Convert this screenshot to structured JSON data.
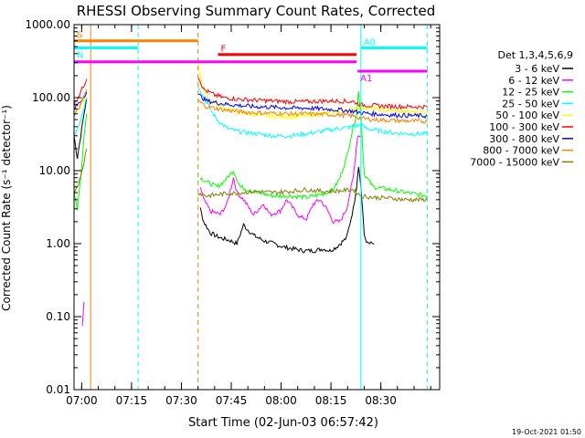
{
  "chart_data": {
    "type": "line",
    "title": "RHESSI Observing Summary Count Rates, Corrected",
    "xlabel": "Start Time (02-Jun-03 06:57:42)",
    "ylabel": "Corrected Count Rate (s⁻¹ detector⁻¹)",
    "footer": "19-Oct-2021 01:50",
    "yscale": "log",
    "ylim": [
      0.01,
      1000
    ],
    "xlim_min": [
      0,
      110
    ],
    "x_units": "minutes after 06:57:42",
    "y_ticks": [
      {
        "v": 0.01,
        "label": "0.01"
      },
      {
        "v": 0.1,
        "label": "0.10"
      },
      {
        "v": 1,
        "label": "1.00"
      },
      {
        "v": 10,
        "label": "10.00"
      },
      {
        "v": 100,
        "label": "100.00"
      },
      {
        "v": 1000,
        "label": "1000.00"
      }
    ],
    "x_ticks": [
      {
        "v": 2.3,
        "label": "07:00"
      },
      {
        "v": 17.3,
        "label": "07:15"
      },
      {
        "v": 32.3,
        "label": "07:30"
      },
      {
        "v": 47.3,
        "label": "07:45"
      },
      {
        "v": 62.3,
        "label": "08:00"
      },
      {
        "v": 77.3,
        "label": "08:15"
      },
      {
        "v": 92.3,
        "label": "08:30"
      }
    ],
    "legend": {
      "title": "Det 1,3,4,5,6,9",
      "position": "right",
      "entries": [
        {
          "label": "3 - 6 keV",
          "color": "#000000"
        },
        {
          "label": "6 - 12 keV",
          "color": "#ff00ff"
        },
        {
          "label": "12 - 25 keV",
          "color": "#00ff00"
        },
        {
          "label": "25 - 50 keV",
          "color": "#00ffff"
        },
        {
          "label": "50 - 100 keV",
          "color": "#ffff00"
        },
        {
          "label": "100 - 300 keV",
          "color": "#ff0000"
        },
        {
          "label": "300 - 800 keV",
          "color": "#0000ff"
        },
        {
          "label": "800 - 7000 keV",
          "color": "#ff8000"
        },
        {
          "label": "7000 - 15000 keV",
          "color": "#808000"
        }
      ]
    },
    "flag_bars": [
      {
        "label": "S",
        "color": "#ff8000",
        "x0": 0,
        "x1": 37.3,
        "y": 600
      },
      {
        "label": "N",
        "color": "#00ffff",
        "x0": 0,
        "x1": 19.3,
        "y": 480
      },
      {
        "label": "",
        "color": "#ff00ff",
        "x0": 0,
        "x1": 85,
        "y": 310
      },
      {
        "label": "F",
        "color": "#ff0000",
        "x0": 43.3,
        "x1": 85,
        "y": 390
      },
      {
        "label": "A0",
        "color": "#00ffff",
        "x0": 86.3,
        "x1": 106.3,
        "y": 480
      },
      {
        "label": "A1",
        "color": "#ff00ff",
        "x0": 85.3,
        "x1": 106.3,
        "y": 230
      }
    ],
    "vlines": [
      {
        "x": 0,
        "color": "#00ffff",
        "style": "dashed"
      },
      {
        "x": 5,
        "color": "#ff8000",
        "style": "solid"
      },
      {
        "x": 19.3,
        "color": "#00ffff",
        "style": "dashed"
      },
      {
        "x": 37.3,
        "color": "#ff8000",
        "style": "dashed"
      },
      {
        "x": 86.3,
        "color": "#00ffff",
        "style": "solid"
      },
      {
        "x": 106.3,
        "color": "#00ffff",
        "style": "dashed"
      }
    ],
    "series": [
      {
        "name": "3 - 6 keV",
        "color": "#000000",
        "segments": [
          [
            [
              0,
              30
            ],
            [
              1,
              15
            ],
            [
              2,
              30
            ],
            [
              3,
              60
            ],
            [
              3.8,
              100
            ]
          ],
          [
            [
              38,
              3
            ],
            [
              39,
              2
            ],
            [
              41,
              1.4
            ],
            [
              44,
              1.2
            ],
            [
              47,
              1.1
            ],
            [
              49,
              1.0
            ],
            [
              51,
              1.8
            ],
            [
              52,
              1.6
            ],
            [
              54,
              1.3
            ],
            [
              57,
              1.1
            ],
            [
              60,
              1.0
            ],
            [
              63,
              0.9
            ],
            [
              66,
              0.85
            ],
            [
              69,
              0.8
            ],
            [
              72,
              0.8
            ],
            [
              75,
              0.85
            ],
            [
              77,
              0.8
            ],
            [
              79,
              0.9
            ],
            [
              82,
              1.2
            ],
            [
              84,
              3
            ],
            [
              85,
              6
            ],
            [
              85.6,
              12
            ],
            [
              86.3,
              6
            ],
            [
              86.8,
              3
            ],
            [
              87.3,
              1.3
            ],
            [
              88.3,
              1.0
            ],
            [
              90.3,
              1.0
            ]
          ]
        ]
      },
      {
        "name": "6 - 12 keV",
        "color": "#ff00ff",
        "segments": [
          [
            [
              2.5,
              0.07
            ],
            [
              3,
              0.16
            ]
          ],
          [
            [
              38,
              6
            ],
            [
              39,
              4
            ],
            [
              41,
              2.8
            ],
            [
              44,
              2.5
            ],
            [
              46,
              3.5
            ],
            [
              48,
              8
            ],
            [
              49,
              5
            ],
            [
              51,
              4
            ],
            [
              54,
              2.5
            ],
            [
              57,
              3.5
            ],
            [
              59,
              2.5
            ],
            [
              62,
              2.8
            ],
            [
              64,
              4
            ],
            [
              66,
              3
            ],
            [
              68,
              2.3
            ],
            [
              70,
              2.2
            ],
            [
              72,
              3.5
            ],
            [
              74,
              4
            ],
            [
              76,
              3
            ],
            [
              78,
              2
            ],
            [
              80,
              2
            ],
            [
              82,
              3
            ],
            [
              84,
              8
            ],
            [
              85.3,
              30
            ],
            [
              86.3,
              30
            ]
          ]
        ]
      },
      {
        "name": "12 - 25 keV",
        "color": "#00ff00",
        "segments": [
          [
            [
              0,
              5
            ],
            [
              1,
              3
            ],
            [
              2,
              8
            ],
            [
              3,
              30
            ],
            [
              3.8,
              60
            ]
          ],
          [
            [
              38,
              8
            ],
            [
              40,
              7
            ],
            [
              43,
              6
            ],
            [
              45,
              7
            ],
            [
              48,
              10
            ],
            [
              50,
              6
            ],
            [
              55,
              5
            ],
            [
              60,
              4.5
            ],
            [
              65,
              4.5
            ],
            [
              70,
              4.3
            ],
            [
              75,
              4.8
            ],
            [
              78,
              5.5
            ],
            [
              80,
              8
            ],
            [
              82,
              15
            ],
            [
              84,
              40
            ],
            [
              85,
              60
            ],
            [
              85.6,
              120
            ],
            [
              86.3,
              60
            ],
            [
              87.3,
              9
            ],
            [
              90,
              6
            ],
            [
              95,
              5.5
            ],
            [
              100,
              5
            ],
            [
              106.3,
              4.5
            ]
          ]
        ]
      },
      {
        "name": "25 - 50 keV",
        "color": "#00ffff",
        "segments": [
          [
            [
              0,
              30
            ],
            [
              2,
              50
            ],
            [
              3.8,
              100
            ]
          ],
          [
            [
              37.3,
              150
            ],
            [
              39,
              100
            ],
            [
              41,
              70
            ],
            [
              43,
              50
            ],
            [
              46,
              38
            ],
            [
              50,
              34
            ],
            [
              55,
              32
            ],
            [
              60,
              30
            ],
            [
              65,
              30
            ],
            [
              70,
              32
            ],
            [
              75,
              35
            ],
            [
              80,
              38
            ],
            [
              84,
              40
            ],
            [
              86.3,
              42
            ],
            [
              88,
              38
            ],
            [
              92,
              35
            ],
            [
              96,
              33
            ],
            [
              100,
              32
            ],
            [
              106.3,
              32
            ]
          ]
        ]
      },
      {
        "name": "50 - 100 keV",
        "color": "#ffff00",
        "segments": [
          [
            [
              0,
              60
            ],
            [
              2,
              80
            ],
            [
              3.8,
              100
            ]
          ],
          [
            [
              37.3,
              300
            ],
            [
              38.5,
              150
            ],
            [
              40,
              100
            ],
            [
              43,
              80
            ],
            [
              46,
              70
            ],
            [
              50,
              62
            ],
            [
              55,
              58
            ],
            [
              60,
              55
            ],
            [
              65,
              55
            ],
            [
              70,
              56
            ],
            [
              75,
              60
            ],
            [
              80,
              66
            ],
            [
              84,
              70
            ],
            [
              86.3,
              75
            ],
            [
              90,
              70
            ],
            [
              95,
              66
            ],
            [
              100,
              64
            ],
            [
              106.3,
              63
            ]
          ]
        ]
      },
      {
        "name": "100 - 300 keV",
        "color": "#ff0000",
        "segments": [
          [
            [
              0,
              80
            ],
            [
              2,
              120
            ],
            [
              3.8,
              180
            ]
          ],
          [
            [
              37.3,
              200
            ],
            [
              39,
              130
            ],
            [
              42,
              110
            ],
            [
              45,
              100
            ],
            [
              50,
              95
            ],
            [
              55,
              92
            ],
            [
              60,
              90
            ],
            [
              65,
              88
            ],
            [
              70,
              88
            ],
            [
              75,
              90
            ],
            [
              80,
              90
            ],
            [
              84,
              88
            ],
            [
              86.3,
              80
            ],
            [
              90,
              78
            ],
            [
              95,
              76
            ],
            [
              100,
              75
            ],
            [
              106.3,
              75
            ]
          ]
        ]
      },
      {
        "name": "300 - 800 keV",
        "color": "#0000ff",
        "segments": [
          [
            [
              0,
              70
            ],
            [
              2,
              90
            ],
            [
              3.8,
              120
            ]
          ],
          [
            [
              37.3,
              110
            ],
            [
              40,
              90
            ],
            [
              45,
              82
            ],
            [
              50,
              78
            ],
            [
              55,
              75
            ],
            [
              60,
              74
            ],
            [
              65,
              72
            ],
            [
              70,
              72
            ],
            [
              75,
              70
            ],
            [
              80,
              68
            ],
            [
              84,
              65
            ],
            [
              86.3,
              62
            ],
            [
              90,
              60
            ],
            [
              95,
              58
            ],
            [
              100,
              57
            ],
            [
              106.3,
              56
            ]
          ]
        ]
      },
      {
        "name": "800 - 7000 keV",
        "color": "#ff8000",
        "segments": [
          [
            [
              0,
              55
            ],
            [
              2,
              80
            ],
            [
              3.8,
              130
            ]
          ],
          [
            [
              37.3,
              90
            ],
            [
              40,
              75
            ],
            [
              45,
              68
            ],
            [
              50,
              64
            ],
            [
              55,
              62
            ],
            [
              60,
              61
            ],
            [
              65,
              60
            ],
            [
              70,
              60
            ],
            [
              75,
              59
            ],
            [
              80,
              58
            ],
            [
              84,
              56
            ],
            [
              86.3,
              52
            ],
            [
              90,
              50
            ],
            [
              95,
              49
            ],
            [
              100,
              48
            ],
            [
              106.3,
              47
            ]
          ]
        ]
      },
      {
        "name": "7000 - 15000 keV",
        "color": "#808000",
        "segments": [
          [
            [
              0,
              5
            ],
            [
              2,
              8
            ],
            [
              3.8,
              20
            ]
          ],
          [
            [
              37.3,
              5
            ],
            [
              40,
              4.5
            ],
            [
              45,
              4.8
            ],
            [
              50,
              5
            ],
            [
              55,
              5.2
            ],
            [
              60,
              5
            ],
            [
              65,
              5.2
            ],
            [
              70,
              5.5
            ],
            [
              75,
              5.2
            ],
            [
              80,
              5.3
            ],
            [
              84,
              5.5
            ],
            [
              86.3,
              4.5
            ],
            [
              90,
              4.3
            ],
            [
              95,
              4.2
            ],
            [
              100,
              4
            ],
            [
              106.3,
              4
            ]
          ]
        ]
      }
    ]
  }
}
